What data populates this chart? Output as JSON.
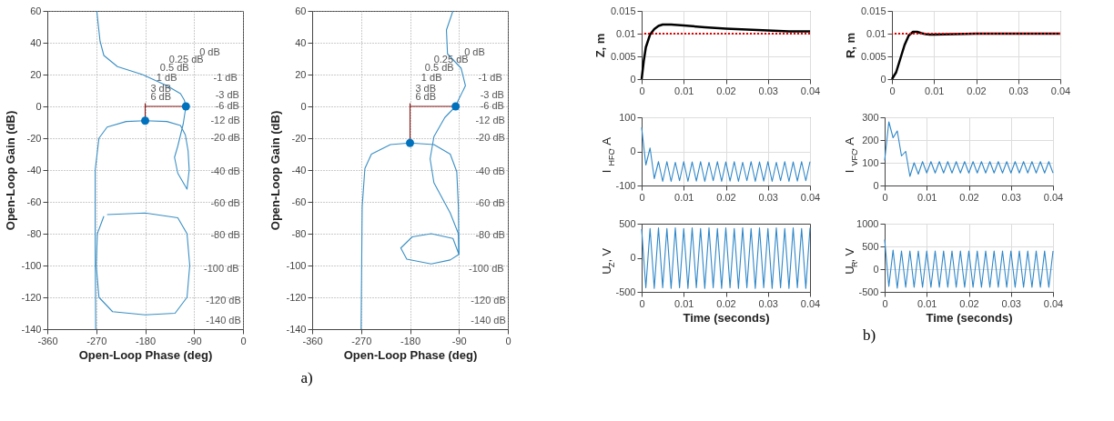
{
  "chart_data": [
    {
      "type": "line",
      "xlabel": "Open-Loop Phase (deg)",
      "ylabel": "Open-Loop Gain (dB)",
      "xlim": [
        -360,
        0
      ],
      "ylim": [
        -140,
        60
      ],
      "xticks": [
        -360,
        -270,
        -180,
        -90,
        0
      ],
      "yticks": [
        -140,
        -120,
        -100,
        -80,
        -60,
        -40,
        -20,
        0,
        20,
        40,
        60
      ],
      "grid": true,
      "series": [
        {
          "type": "line",
          "color": "#3a8fc4",
          "x": [
            -269,
            -263,
            -256,
            -231,
            -185,
            -140,
            -115,
            -108,
            -105,
            -110,
            -120,
            -126,
            -120,
            -103,
            -99,
            -101,
            -106,
            -115,
            -140,
            -180,
            -215,
            -250,
            -265,
            -272,
            -272,
            -271
          ],
          "values": [
            60,
            41,
            32,
            25,
            20,
            13,
            8,
            4,
            0,
            -11,
            -25,
            -32,
            -42,
            -52,
            -40,
            -28,
            -18,
            -12,
            -9.5,
            -9,
            -9.5,
            -13,
            -20,
            -40,
            -85,
            -140
          ]
        },
        {
          "type": "line",
          "color": "#3a8fc4",
          "x": [
            -250,
            -180,
            -120,
            -103,
            -98,
            -103,
            -125,
            -180,
            -240,
            -265,
            -270,
            -268,
            -256
          ],
          "values": [
            -68,
            -67,
            -70,
            -80,
            -100,
            -120,
            -130,
            -131,
            -129,
            -120,
            -100,
            -80,
            -69
          ]
        },
        {
          "type": "line",
          "color": "#8b1a1a",
          "x": [
            -180,
            -105
          ],
          "values": [
            0,
            0
          ]
        },
        {
          "type": "line",
          "color": "#8b1a1a",
          "x": [
            -180,
            -180
          ],
          "values": [
            2,
            -9
          ]
        },
        {
          "type": "scatter",
          "color": "#0072bd",
          "x": [
            -105,
            -180
          ],
          "values": [
            0,
            -9
          ]
        }
      ],
      "annotations": [
        "0 dB",
        "0.25 dB",
        "0.5 dB",
        "1 dB",
        "3 dB",
        "6 dB",
        "-1 dB",
        "-3 dB",
        "-6 dB",
        "-12 dB",
        "-20 dB",
        "-40 dB",
        "-60 dB",
        "-80 dB",
        "-100 dB",
        "-120 dB",
        "-140 dB",
        "a)"
      ]
    },
    {
      "type": "line",
      "xlabel": "Open-Loop Phase (deg)",
      "ylabel": "Open-Loop Gain (dB)",
      "xlim": [
        -360,
        0
      ],
      "ylim": [
        -140,
        60
      ],
      "xticks": [
        -360,
        -270,
        -180,
        -90,
        0
      ],
      "yticks": [
        -140,
        -120,
        -100,
        -80,
        -60,
        -40,
        -20,
        0,
        20,
        40,
        60
      ],
      "grid": true,
      "series": [
        {
          "type": "line",
          "color": "#3a8fc4",
          "x": [
            -101,
            -113,
            -111,
            -86,
            -78,
            -91,
            -96,
            -116,
            -136,
            -143,
            -136,
            -106,
            -91,
            -90,
            -106,
            -141,
            -186,
            -197,
            -176,
            -141,
            -101,
            -90
          ],
          "values": [
            60,
            48,
            33,
            24,
            13,
            4,
            0,
            -7,
            -19,
            -33,
            -48,
            -67,
            -80,
            -93,
            -96.5,
            -99,
            -96,
            -89,
            -82,
            -80,
            -83,
            -93
          ]
        },
        {
          "type": "line",
          "color": "#3a8fc4",
          "x": [
            -270,
            -268,
            -263,
            -251,
            -216,
            -180,
            -136,
            -106,
            -94,
            -91,
            -90
          ],
          "values": [
            -140,
            -63,
            -39,
            -30,
            -24,
            -23,
            -24,
            -30,
            -41,
            -63,
            -93
          ]
        },
        {
          "type": "line",
          "color": "#8b1a1a",
          "x": [
            -180,
            -96
          ],
          "values": [
            0,
            0
          ]
        },
        {
          "type": "line",
          "color": "#8b1a1a",
          "x": [
            -180,
            -180
          ],
          "values": [
            2,
            -23
          ]
        },
        {
          "type": "scatter",
          "color": "#0072bd",
          "x": [
            -96,
            -180
          ],
          "values": [
            0,
            -23
          ]
        }
      ],
      "annotations": [
        "0 dB",
        "0.25 dB",
        "0.5 dB",
        "1 dB",
        "3 dB",
        "6 dB",
        "-1 dB",
        "-3 dB",
        "-6 dB",
        "-12 dB",
        "-20 dB",
        "-40 dB",
        "-60 dB",
        "-80 dB",
        "-100 dB",
        "-120 dB",
        "-140 dB"
      ]
    },
    {
      "type": "line",
      "ylabel": "Z, m",
      "xlim": [
        0,
        0.04
      ],
      "ylim": [
        0,
        0.015
      ],
      "xticks": [
        0,
        0.01,
        0.02,
        0.03,
        0.04
      ],
      "yticks": [
        0,
        0.005,
        0.01,
        0.015
      ],
      "grid": true,
      "series": [
        {
          "color": "#000000",
          "x": [
            0,
            0.0005,
            0.001,
            0.002,
            0.003,
            0.004,
            0.005,
            0.007,
            0.01,
            0.015,
            0.02,
            0.025,
            0.03,
            0.035,
            0.04
          ],
          "values": [
            0,
            0.004,
            0.007,
            0.0098,
            0.011,
            0.0117,
            0.012,
            0.012,
            0.0118,
            0.0114,
            0.0111,
            0.0109,
            0.0107,
            0.0105,
            0.0105
          ]
        }
      ],
      "ref_lines": [
        {
          "axis": "y",
          "value": 0.01,
          "color": "#e00000",
          "line_style": "dotted"
        }
      ]
    },
    {
      "type": "line",
      "ylabel": "R, m",
      "xlim": [
        0,
        0.04
      ],
      "ylim": [
        0,
        0.015
      ],
      "xticks": [
        0,
        0.01,
        0.02,
        0.03,
        0.04
      ],
      "yticks": [
        0,
        0.005,
        0.01,
        0.015
      ],
      "grid": true,
      "series": [
        {
          "color": "#000000",
          "x": [
            0,
            0.001,
            0.002,
            0.003,
            0.004,
            0.005,
            0.006,
            0.007,
            0.008,
            0.009,
            0.01,
            0.015,
            0.02,
            0.03,
            0.04
          ],
          "values": [
            0,
            0.0015,
            0.0045,
            0.0075,
            0.0096,
            0.0104,
            0.0104,
            0.0101,
            0.0099,
            0.0098,
            0.0098,
            0.0099,
            0.01,
            0.01,
            0.01
          ]
        }
      ],
      "ref_lines": [
        {
          "axis": "y",
          "value": 0.01,
          "color": "#e00000",
          "line_style": "dotted"
        }
      ]
    },
    {
      "type": "line",
      "ylabel": "I$_{HFC}$, A",
      "xlim": [
        0,
        0.04
      ],
      "ylim": [
        -100,
        100
      ],
      "xticks": [
        0,
        0.01,
        0.02,
        0.03,
        0.04
      ],
      "yticks": [
        -100,
        0,
        100
      ],
      "grid": true,
      "series": [
        {
          "color": "#2f87c8",
          "x": [
            0,
            0.001,
            0.002,
            0.003,
            0.004,
            0.005,
            0.006,
            0.007,
            0.008,
            0.009,
            0.01,
            0.011,
            0.012,
            0.013,
            0.014,
            0.015,
            0.016,
            0.017,
            0.018,
            0.019,
            0.02,
            0.021,
            0.022,
            0.023,
            0.024,
            0.025,
            0.026,
            0.027,
            0.028,
            0.029,
            0.03,
            0.031,
            0.032,
            0.033,
            0.034,
            0.035,
            0.036,
            0.037,
            0.038,
            0.039,
            0.04
          ],
          "values": [
            70,
            -40,
            10,
            -80,
            -30,
            -88,
            -30,
            -88,
            -32,
            -86,
            -30,
            -88,
            -31,
            -87,
            -30,
            -88,
            -32,
            -86,
            -30,
            -88,
            -31,
            -87,
            -30,
            -88,
            -32,
            -86,
            -30,
            -88,
            -31,
            -87,
            -30,
            -88,
            -32,
            -86,
            -30,
            -88,
            -31,
            -87,
            -30,
            -86,
            -30
          ]
        }
      ]
    },
    {
      "type": "line",
      "ylabel": "I$_{VFC}$, A",
      "xlim": [
        0,
        0.04
      ],
      "ylim": [
        0,
        300
      ],
      "xticks": [
        0,
        0.01,
        0.02,
        0.03,
        0.04
      ],
      "yticks": [
        0,
        100,
        200,
        300
      ],
      "grid": true,
      "series": [
        {
          "color": "#2f87c8",
          "x": [
            0,
            0.001,
            0.002,
            0.003,
            0.004,
            0.005,
            0.006,
            0.007,
            0.008,
            0.009,
            0.01,
            0.011,
            0.012,
            0.013,
            0.014,
            0.015,
            0.016,
            0.017,
            0.018,
            0.019,
            0.02,
            0.021,
            0.022,
            0.023,
            0.024,
            0.025,
            0.026,
            0.027,
            0.028,
            0.029,
            0.03,
            0.031,
            0.032,
            0.033,
            0.034,
            0.035,
            0.036,
            0.037,
            0.038,
            0.039,
            0.04
          ],
          "values": [
            110,
            280,
            210,
            240,
            130,
            150,
            40,
            100,
            50,
            105,
            55,
            105,
            55,
            105,
            55,
            105,
            55,
            105,
            55,
            105,
            55,
            105,
            55,
            105,
            55,
            105,
            55,
            105,
            55,
            105,
            55,
            105,
            55,
            105,
            55,
            105,
            55,
            105,
            55,
            105,
            55
          ]
        }
      ]
    },
    {
      "type": "line",
      "ylabel": "U$_{Z}$, V",
      "xlim": [
        0,
        0.04
      ],
      "ylim": [
        -500,
        500
      ],
      "xticks": [
        0,
        0.01,
        0.02,
        0.03,
        0.04
      ],
      "yticks": [
        -500,
        0,
        500
      ],
      "grid": false,
      "series": [
        {
          "color": "#2f87c8",
          "x": [
            0,
            0.001,
            0.002,
            0.003,
            0.004,
            0.005,
            0.006,
            0.007,
            0.008,
            0.009,
            0.01,
            0.011,
            0.012,
            0.013,
            0.014,
            0.015,
            0.016,
            0.017,
            0.018,
            0.019,
            0.02,
            0.021,
            0.022,
            0.023,
            0.024,
            0.025,
            0.026,
            0.027,
            0.028,
            0.029,
            0.03,
            0.031,
            0.032,
            0.033,
            0.034,
            0.035,
            0.036,
            0.037,
            0.038,
            0.039,
            0.04
          ],
          "values": [
            420,
            -440,
            430,
            -450,
            440,
            -440,
            430,
            -450,
            440,
            -440,
            430,
            -450,
            440,
            -440,
            430,
            -450,
            440,
            -440,
            430,
            -450,
            440,
            -440,
            430,
            -450,
            440,
            -440,
            430,
            -450,
            440,
            -440,
            430,
            -450,
            440,
            -440,
            430,
            -450,
            440,
            -440,
            430,
            -450,
            440
          ]
        }
      ],
      "xlabel": "Time (seconds)"
    },
    {
      "type": "line",
      "ylabel": "U$_{R}$, V",
      "xlim": [
        0,
        0.04
      ],
      "ylim": [
        -500,
        1000
      ],
      "xticks": [
        0,
        0.01,
        0.02,
        0.03,
        0.04
      ],
      "yticks": [
        -500,
        0,
        500,
        1000
      ],
      "grid": true,
      "series": [
        {
          "color": "#2f87c8",
          "x": [
            0,
            0.001,
            0.002,
            0.003,
            0.004,
            0.005,
            0.006,
            0.007,
            0.008,
            0.009,
            0.01,
            0.011,
            0.012,
            0.013,
            0.014,
            0.015,
            0.016,
            0.017,
            0.018,
            0.019,
            0.02,
            0.021,
            0.022,
            0.023,
            0.024,
            0.025,
            0.026,
            0.027,
            0.028,
            0.029,
            0.03,
            0.031,
            0.032,
            0.033,
            0.034,
            0.035,
            0.036,
            0.037,
            0.038,
            0.039,
            0.04
          ],
          "values": [
            650,
            -380,
            420,
            -420,
            400,
            -400,
            400,
            -400,
            400,
            -400,
            400,
            -400,
            400,
            -400,
            400,
            -400,
            400,
            -400,
            400,
            -400,
            400,
            -400,
            400,
            -400,
            400,
            -400,
            400,
            -400,
            400,
            -400,
            400,
            -400,
            400,
            -400,
            400,
            -400,
            400,
            -400,
            400,
            -400,
            400
          ]
        }
      ],
      "xlabel": "Time (seconds)",
      "annotations": [
        "b)"
      ]
    }
  ]
}
